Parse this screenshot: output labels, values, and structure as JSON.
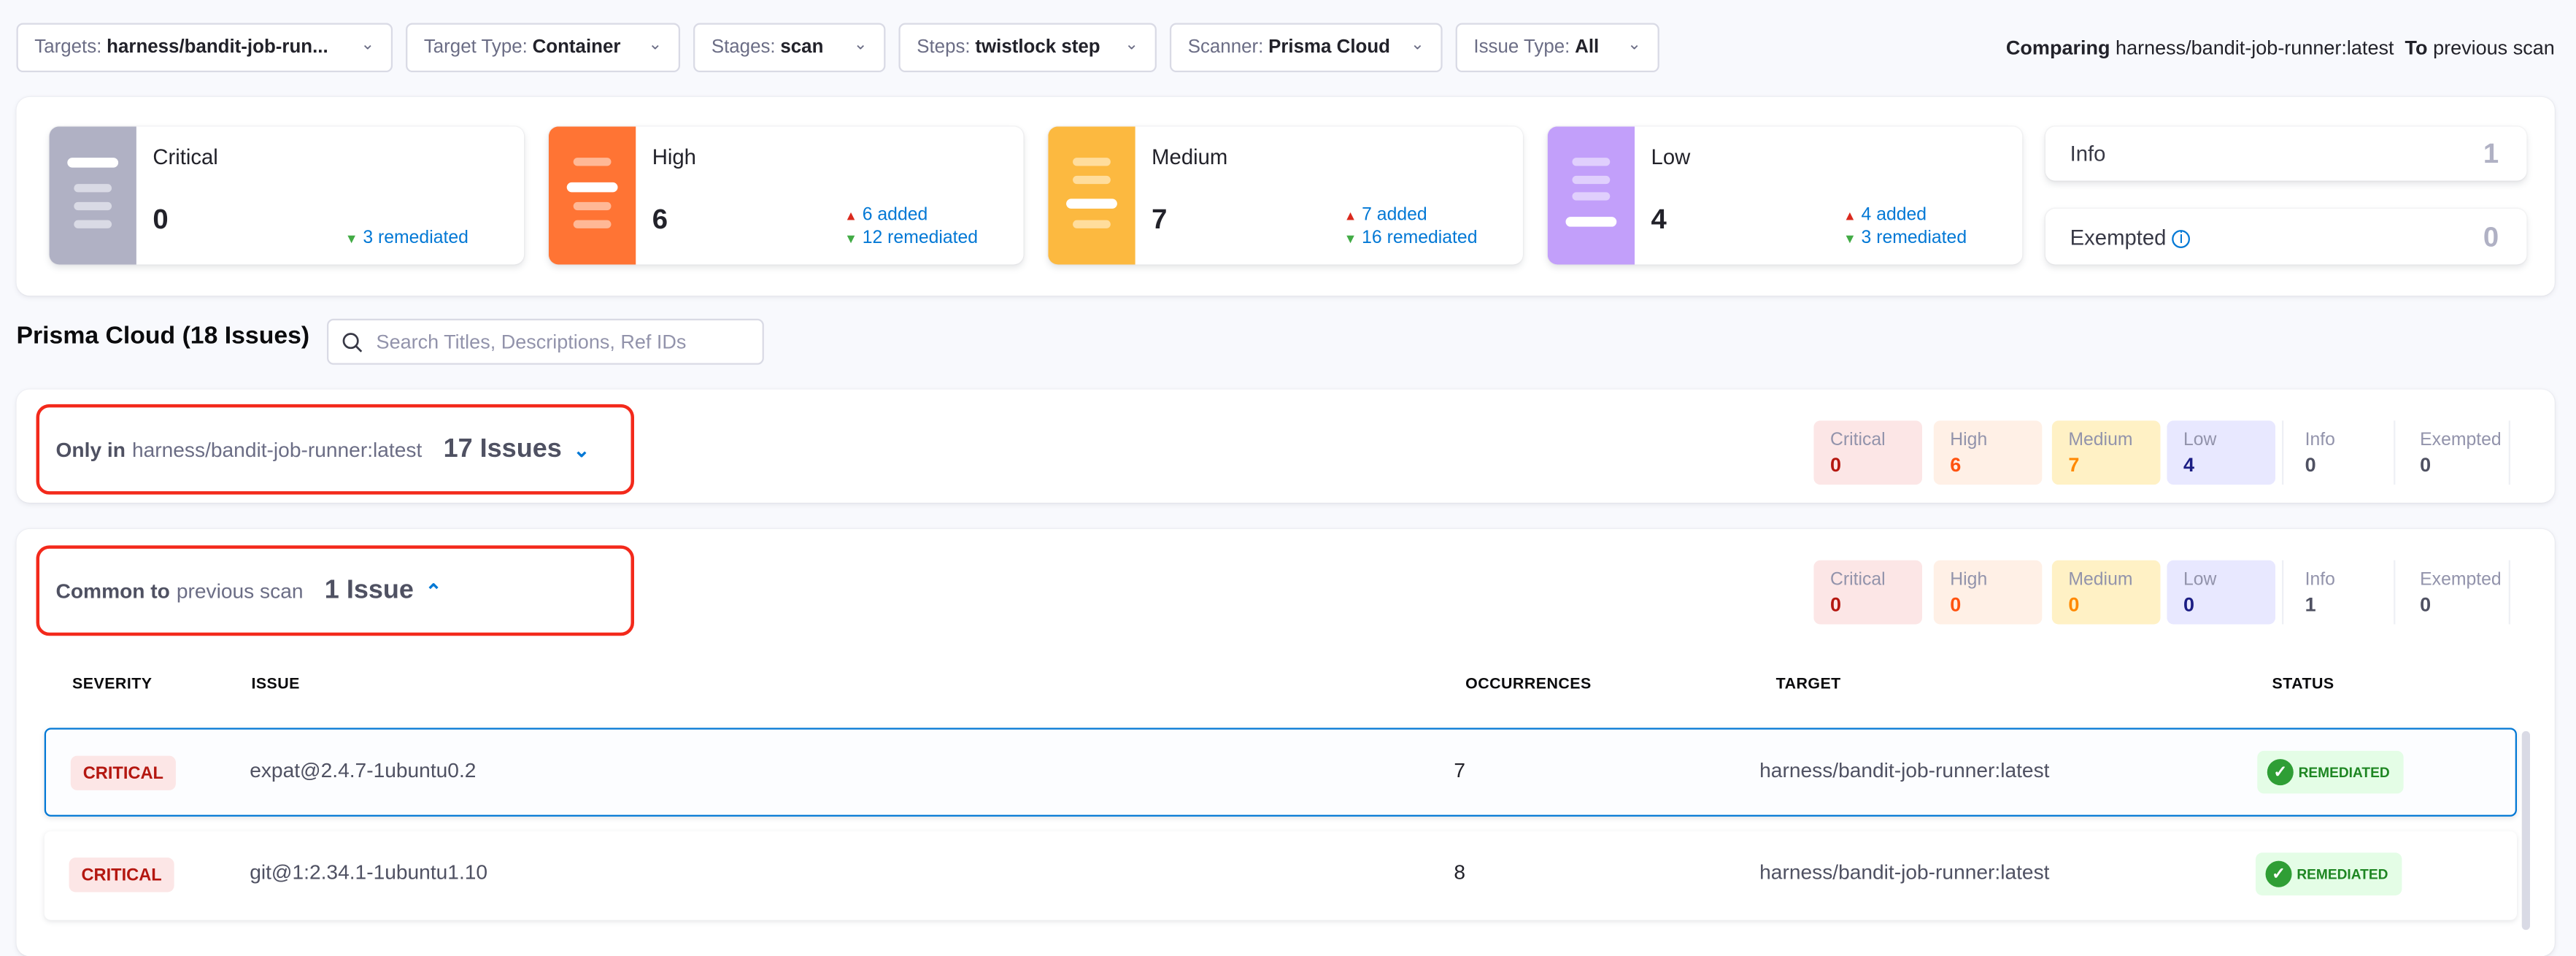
{
  "filters": [
    {
      "label": "Targets:",
      "value": "harness/bandit-job-run..."
    },
    {
      "label": "Target Type:",
      "value": "Container"
    },
    {
      "label": "Stages:",
      "value": "scan"
    },
    {
      "label": "Steps:",
      "value": "twistlock step"
    },
    {
      "label": "Scanner:",
      "value": "Prisma Cloud"
    },
    {
      "label": "Issue Type:",
      "value": "All"
    }
  ],
  "comparison": {
    "prefix": "Comparing",
    "target": "harness/bandit-job-runner:latest",
    "to_label": "To",
    "baseline": "previous scan"
  },
  "summary": {
    "cards": [
      {
        "label": "Critical",
        "count": "0",
        "added": "",
        "remediated": "3 remediated",
        "color": "#b0b1c4"
      },
      {
        "label": "High",
        "count": "6",
        "added": "6 added",
        "remediated": "12 remediated",
        "color": "#ff7434"
      },
      {
        "label": "Medium",
        "count": "7",
        "added": "7 added",
        "remediated": "16 remediated",
        "color": "#fcb940"
      },
      {
        "label": "Low",
        "count": "4",
        "added": "4 added",
        "remediated": "3 remediated",
        "color": "#c29ffa"
      }
    ],
    "info": {
      "label": "Info",
      "count": "1"
    },
    "exempted": {
      "label": "Exempted",
      "count": "0"
    }
  },
  "section_title": "Prisma Cloud (18 Issues)",
  "search": {
    "placeholder": "Search Titles, Descriptions, Ref IDs",
    "value": ""
  },
  "groups": [
    {
      "prefix": "Only in",
      "name": "harness/bandit-job-runner:latest",
      "count": "17 Issues",
      "expanded": false,
      "severity": {
        "critical": "0",
        "high": "6",
        "medium": "7",
        "low": "4",
        "info": "0",
        "exempted": "0"
      }
    },
    {
      "prefix": "Common to",
      "name": "previous scan",
      "count": "1 Issue",
      "expanded": true,
      "severity": {
        "critical": "0",
        "high": "0",
        "medium": "0",
        "low": "0",
        "info": "1",
        "exempted": "0"
      }
    }
  ],
  "severity_labels": {
    "critical": "Critical",
    "high": "High",
    "medium": "Medium",
    "low": "Low",
    "info": "Info",
    "exempted": "Exempted"
  },
  "table": {
    "headers": [
      "SEVERITY",
      "ISSUE",
      "OCCURRENCES",
      "TARGET",
      "STATUS"
    ],
    "rows": [
      {
        "severity": "CRITICAL",
        "issue": "expat@2.4.7-1ubuntu0.2",
        "occurrences": "7",
        "target": "harness/bandit-job-runner:latest",
        "status": "REMEDIATED",
        "selected": true
      },
      {
        "severity": "CRITICAL",
        "issue": "git@1:2.34.1-1ubuntu1.10",
        "occurrences": "8",
        "target": "harness/bandit-job-runner:latest",
        "status": "REMEDIATED",
        "selected": false
      }
    ]
  }
}
